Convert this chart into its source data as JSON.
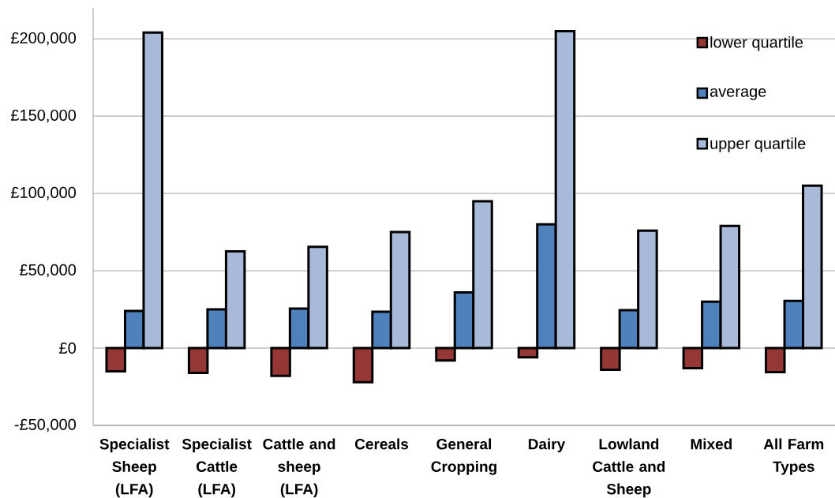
{
  "chart_data": {
    "type": "bar",
    "categories": [
      "Specialist Sheep (LFA)",
      "Specialist Cattle (LFA)",
      "Cattle and sheep (LFA)",
      "Cereals",
      "General Cropping",
      "Dairy",
      "Lowland Cattle and Sheep",
      "Mixed",
      "All Farm Types"
    ],
    "series": [
      {
        "name": "lower quartile",
        "color": "#953735",
        "values": [
          -15000,
          -16000,
          -18000,
          -22000,
          -8000,
          -6000,
          -14000,
          -13000,
          -15500
        ]
      },
      {
        "name": "average",
        "color": "#4f81bd",
        "values": [
          24000,
          25000,
          25500,
          23500,
          36000,
          80000,
          24500,
          30000,
          30500
        ]
      },
      {
        "name": "upper quartile",
        "color": "#a9b9d9",
        "values": [
          204000,
          62500,
          65500,
          75000,
          95000,
          205000,
          76000,
          79000,
          105000
        ]
      }
    ],
    "ylim": [
      -50000,
      220000
    ],
    "yticks": [
      {
        "value": -50000,
        "label": "-£50,000"
      },
      {
        "value": 0,
        "label": "£0"
      },
      {
        "value": 50000,
        "label": "£50,000"
      },
      {
        "value": 100000,
        "label": "£100,000"
      },
      {
        "value": 150000,
        "label": "£150,000"
      },
      {
        "value": 200000,
        "label": "£200,000"
      }
    ],
    "grid": "y",
    "legend": "top right"
  }
}
